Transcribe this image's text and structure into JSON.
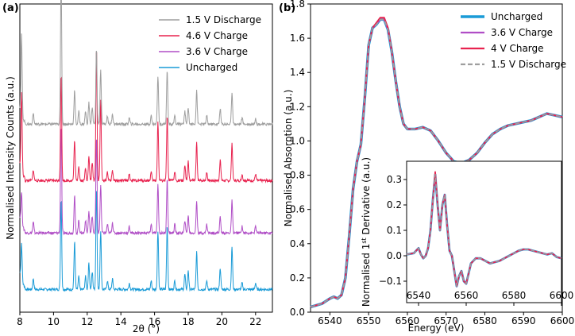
{
  "chart_data": [
    {
      "panel": "(a)",
      "type": "line",
      "title": "",
      "xlabel": "2θ (°)",
      "ylabel": "Normalised Intensity Counts (a.u.)",
      "xlim": [
        8,
        23
      ],
      "xticks": [
        "8",
        "10",
        "12",
        "14",
        "16",
        "18",
        "20",
        "22"
      ],
      "y_offset_units": true,
      "legend_position": "top-right",
      "peaks_2theta": [
        8.1,
        8.8,
        10.45,
        11.25,
        11.5,
        11.9,
        12.1,
        12.3,
        12.55,
        12.8,
        13.2,
        13.5,
        14.5,
        15.8,
        16.2,
        16.75,
        17.2,
        17.8,
        18.0,
        18.5,
        19.1,
        19.9,
        20.6,
        21.2,
        22.0
      ],
      "peak_heights": [
        0.35,
        0.1,
        1.0,
        0.3,
        0.12,
        0.12,
        0.2,
        0.16,
        0.55,
        0.4,
        0.08,
        0.1,
        0.06,
        0.08,
        0.45,
        0.5,
        0.08,
        0.12,
        0.16,
        0.28,
        0.08,
        0.15,
        0.28,
        0.06,
        0.06
      ],
      "series": [
        {
          "name": "Uncharged",
          "color": "#1a9bd7",
          "offset": 0.0,
          "peak_scale": [
            0.35,
            0.1,
            0.85,
            0.45,
            0.12,
            0.12,
            0.25,
            0.16,
            0.95,
            0.55,
            0.08,
            0.1,
            0.06,
            0.08,
            0.55,
            0.6,
            0.08,
            0.14,
            0.18,
            0.35,
            0.08,
            0.2,
            0.4,
            0.06,
            0.06
          ]
        },
        {
          "name": "3.6 V Charge",
          "color": "#b04ec6",
          "offset": 1.0,
          "peak_scale": [
            0.3,
            0.1,
            1.0,
            0.35,
            0.12,
            0.12,
            0.2,
            0.16,
            0.9,
            0.45,
            0.08,
            0.1,
            0.06,
            0.08,
            0.45,
            0.5,
            0.08,
            0.12,
            0.16,
            0.3,
            0.08,
            0.15,
            0.3,
            0.06,
            0.06
          ]
        },
        {
          "name": "4.6 V Charge",
          "color": "#e8234f",
          "offset": 2.0,
          "peak_scale": [
            0.75,
            0.1,
            1.0,
            0.38,
            0.14,
            0.12,
            0.22,
            0.16,
            1.25,
            0.75,
            0.08,
            0.1,
            0.06,
            0.08,
            0.55,
            0.6,
            0.08,
            0.14,
            0.18,
            0.35,
            0.08,
            0.2,
            0.35,
            0.06,
            0.06
          ]
        },
        {
          "name": "1.5 V Discharge",
          "color": "#9e9e9e",
          "offset": 3.0,
          "peak_scale": [
            0.75,
            0.1,
            1.35,
            0.32,
            0.12,
            0.12,
            0.2,
            0.16,
            0.7,
            0.5,
            0.08,
            0.1,
            0.06,
            0.08,
            0.45,
            0.5,
            0.08,
            0.12,
            0.16,
            0.32,
            0.08,
            0.15,
            0.3,
            0.06,
            0.06
          ]
        }
      ],
      "legend_order": [
        "1.5 V Discharge",
        "4.6 V Charge",
        "3.6 V Charge",
        "Uncharged"
      ]
    },
    {
      "panel": "(b)",
      "type": "line",
      "title": "",
      "xlabel": "Energy (eV)",
      "ylabel": "Normalised Absorption (a.u.)",
      "xlim": [
        6535,
        6600
      ],
      "ylim": [
        0.0,
        1.8
      ],
      "xticks": [
        "6540",
        "6550",
        "6560",
        "6570",
        "6580",
        "6590",
        "6600"
      ],
      "yticks": [
        "0.0",
        "0.2",
        "0.4",
        "0.6",
        "0.8",
        "1.0",
        "1.2",
        "1.4",
        "1.6",
        "1.8"
      ],
      "legend_position": "top-right",
      "x": [
        6535,
        6538,
        6540,
        6541,
        6542,
        6543,
        6544,
        6545,
        6546,
        6547,
        6548,
        6549,
        6550,
        6551,
        6552,
        6553,
        6554,
        6555,
        6556,
        6557,
        6558,
        6559,
        6560,
        6562,
        6564,
        6566,
        6568,
        6570,
        6572,
        6574,
        6576,
        6578,
        6580,
        6582,
        6584,
        6586,
        6588,
        6590,
        6592,
        6594,
        6596,
        6598,
        6600
      ],
      "series": [
        {
          "name": "Uncharged",
          "color": "#1a9bd7",
          "style": "solid",
          "values": [
            0.03,
            0.05,
            0.08,
            0.09,
            0.08,
            0.1,
            0.2,
            0.45,
            0.72,
            0.88,
            0.98,
            1.25,
            1.56,
            1.66,
            1.68,
            1.71,
            1.71,
            1.65,
            1.52,
            1.35,
            1.2,
            1.1,
            1.07,
            1.07,
            1.08,
            1.06,
            1.0,
            0.93,
            0.88,
            0.87,
            0.89,
            0.93,
            0.99,
            1.04,
            1.07,
            1.09,
            1.1,
            1.11,
            1.12,
            1.14,
            1.16,
            1.15,
            1.14
          ]
        },
        {
          "name": "3.6 V Charge",
          "color": "#b04ec6",
          "style": "solid",
          "values": [
            0.03,
            0.05,
            0.08,
            0.09,
            0.08,
            0.1,
            0.2,
            0.45,
            0.72,
            0.88,
            0.98,
            1.25,
            1.56,
            1.66,
            1.68,
            1.71,
            1.71,
            1.65,
            1.52,
            1.35,
            1.2,
            1.1,
            1.07,
            1.07,
            1.08,
            1.06,
            1.0,
            0.93,
            0.88,
            0.87,
            0.89,
            0.93,
            0.99,
            1.04,
            1.07,
            1.09,
            1.1,
            1.11,
            1.12,
            1.14,
            1.16,
            1.15,
            1.14
          ]
        },
        {
          "name": "4 V Charge",
          "color": "#e8234f",
          "style": "solid",
          "values": [
            0.03,
            0.05,
            0.08,
            0.09,
            0.08,
            0.1,
            0.2,
            0.45,
            0.72,
            0.88,
            0.98,
            1.25,
            1.56,
            1.66,
            1.69,
            1.72,
            1.72,
            1.66,
            1.52,
            1.35,
            1.2,
            1.1,
            1.07,
            1.07,
            1.08,
            1.06,
            1.0,
            0.93,
            0.88,
            0.87,
            0.89,
            0.93,
            0.99,
            1.04,
            1.07,
            1.09,
            1.1,
            1.11,
            1.12,
            1.14,
            1.16,
            1.15,
            1.14
          ]
        },
        {
          "name": "1.5 V Discharge",
          "color": "#9e9e9e",
          "style": "dashed",
          "values": [
            0.03,
            0.05,
            0.08,
            0.09,
            0.08,
            0.1,
            0.2,
            0.45,
            0.72,
            0.88,
            0.98,
            1.25,
            1.56,
            1.66,
            1.68,
            1.71,
            1.71,
            1.65,
            1.52,
            1.35,
            1.2,
            1.1,
            1.07,
            1.07,
            1.08,
            1.06,
            1.0,
            0.93,
            0.88,
            0.87,
            0.89,
            0.93,
            0.99,
            1.04,
            1.07,
            1.09,
            1.1,
            1.11,
            1.12,
            1.14,
            1.16,
            1.15,
            1.14
          ]
        }
      ]
    },
    {
      "panel": "(b) inset",
      "type": "line",
      "title": "",
      "xlabel": "",
      "ylabel_main": "Normalised 1",
      "ylabel_sup": "st",
      "ylabel_tail": " Derivative (a.u.)",
      "xlim": [
        6535,
        6600
      ],
      "ylim": [
        -0.15,
        0.35
      ],
      "xticks": [
        "6540",
        "6560",
        "6580",
        "6600"
      ],
      "yticks": [
        "−0.1",
        "0.0",
        "0.1",
        "0.2",
        "0.3"
      ],
      "x": [
        6535,
        6538,
        6539,
        6540,
        6541,
        6542,
        6543,
        6544,
        6545,
        6546,
        6547,
        6548,
        6549,
        6550,
        6551,
        6552,
        6553,
        6554,
        6555,
        6556,
        6557,
        6558,
        6559,
        6560,
        6561,
        6562,
        6564,
        6566,
        6568,
        6570,
        6572,
        6574,
        6576,
        6578,
        6580,
        6582,
        6584,
        6586,
        6588,
        6590,
        6592,
        6594,
        6596,
        6598,
        6600
      ],
      "series": [
        {
          "name": "Uncharged",
          "color": "#1a9bd7",
          "style": "solid",
          "values": [
            0.005,
            0.01,
            0.02,
            0.03,
            0.005,
            -0.01,
            0.0,
            0.03,
            0.1,
            0.22,
            0.32,
            0.2,
            0.1,
            0.2,
            0.24,
            0.12,
            0.02,
            0.0,
            -0.06,
            -0.12,
            -0.08,
            -0.06,
            -0.1,
            -0.11,
            -0.07,
            -0.03,
            -0.01,
            -0.01,
            -0.02,
            -0.03,
            -0.025,
            -0.02,
            -0.01,
            0.0,
            0.01,
            0.02,
            0.025,
            0.025,
            0.02,
            0.015,
            0.01,
            0.005,
            0.01,
            -0.005,
            -0.01
          ]
        },
        {
          "name": "3.6 V Charge",
          "color": "#b04ec6",
          "style": "solid",
          "values": [
            0.005,
            0.01,
            0.02,
            0.03,
            0.005,
            -0.01,
            0.0,
            0.03,
            0.1,
            0.22,
            0.32,
            0.2,
            0.1,
            0.2,
            0.24,
            0.12,
            0.02,
            0.0,
            -0.06,
            -0.12,
            -0.08,
            -0.06,
            -0.1,
            -0.11,
            -0.07,
            -0.03,
            -0.01,
            -0.01,
            -0.02,
            -0.03,
            -0.025,
            -0.02,
            -0.01,
            0.0,
            0.01,
            0.02,
            0.025,
            0.025,
            0.02,
            0.015,
            0.01,
            0.005,
            0.01,
            -0.005,
            -0.01
          ]
        },
        {
          "name": "4 V Charge",
          "color": "#e8234f",
          "style": "solid",
          "values": [
            0.005,
            0.01,
            0.02,
            0.03,
            0.005,
            -0.01,
            0.0,
            0.03,
            0.1,
            0.22,
            0.33,
            0.2,
            0.1,
            0.2,
            0.24,
            0.12,
            0.02,
            0.0,
            -0.06,
            -0.12,
            -0.08,
            -0.06,
            -0.1,
            -0.11,
            -0.07,
            -0.03,
            -0.01,
            -0.01,
            -0.02,
            -0.03,
            -0.025,
            -0.02,
            -0.01,
            0.0,
            0.01,
            0.02,
            0.025,
            0.025,
            0.02,
            0.015,
            0.01,
            0.005,
            0.01,
            -0.005,
            -0.01
          ]
        },
        {
          "name": "1.5 V Discharge",
          "color": "#9e9e9e",
          "style": "dashed",
          "values": [
            0.005,
            0.01,
            0.02,
            0.03,
            0.005,
            -0.01,
            0.0,
            0.03,
            0.1,
            0.22,
            0.32,
            0.2,
            0.1,
            0.2,
            0.24,
            0.12,
            0.02,
            0.0,
            -0.06,
            -0.12,
            -0.08,
            -0.06,
            -0.1,
            -0.11,
            -0.07,
            -0.03,
            -0.01,
            -0.01,
            -0.02,
            -0.03,
            -0.025,
            -0.02,
            -0.01,
            0.0,
            0.01,
            0.02,
            0.025,
            0.025,
            0.02,
            0.015,
            0.01,
            0.005,
            0.01,
            -0.005,
            -0.01
          ]
        }
      ]
    }
  ]
}
